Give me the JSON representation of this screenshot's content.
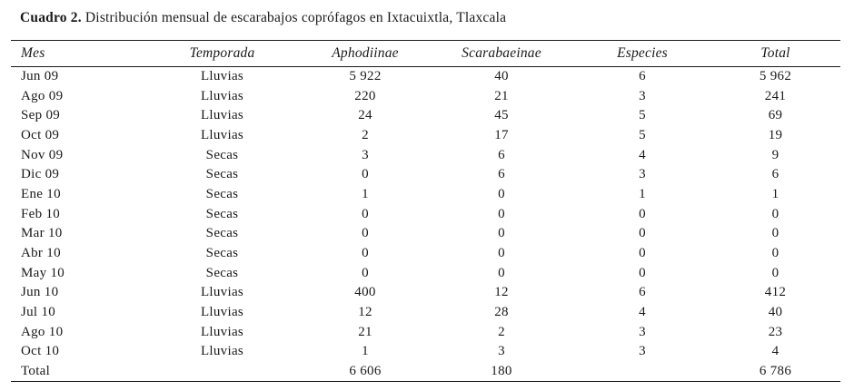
{
  "caption": {
    "label": "Cuadro 2.",
    "text": " Distribución mensual de escarabajos coprófagos en Ixtacuixtla, Tlaxcala"
  },
  "table": {
    "columns": [
      "Mes",
      "Temporada",
      "Aphodiinae",
      "Scarabaeinae",
      "Especies",
      "Total"
    ],
    "rows": [
      [
        "Jun 09",
        "Lluvias",
        "5 922",
        "40",
        "6",
        "5 962"
      ],
      [
        "Ago 09",
        "Lluvias",
        "220",
        "21",
        "3",
        "241"
      ],
      [
        "Sep 09",
        "Lluvias",
        "24",
        "45",
        "5",
        "69"
      ],
      [
        "Oct 09",
        "Lluvias",
        "2",
        "17",
        "5",
        "19"
      ],
      [
        "Nov 09",
        "Secas",
        "3",
        "6",
        "4",
        "9"
      ],
      [
        "Dic 09",
        "Secas",
        "0",
        "6",
        "3",
        "6"
      ],
      [
        "Ene 10",
        "Secas",
        "1",
        "0",
        "1",
        "1"
      ],
      [
        "Feb 10",
        "Secas",
        "0",
        "0",
        "0",
        "0"
      ],
      [
        "Mar 10",
        "Secas",
        "0",
        "0",
        "0",
        "0"
      ],
      [
        "Abr 10",
        "Secas",
        "0",
        "0",
        "0",
        "0"
      ],
      [
        "May 10",
        "Secas",
        "0",
        "0",
        "0",
        "0"
      ],
      [
        "Jun 10",
        "Lluvias",
        "400",
        "12",
        "6",
        "412"
      ],
      [
        "Jul 10",
        "Lluvias",
        "12",
        "28",
        "4",
        "40"
      ],
      [
        "Ago 10",
        "Lluvias",
        "21",
        "2",
        "3",
        "23"
      ],
      [
        "Oct 10",
        "Lluvias",
        "1",
        "3",
        "3",
        "4"
      ],
      [
        "Total",
        "",
        "6 606",
        "180",
        "",
        "6 786"
      ]
    ]
  },
  "colors": {
    "text": "#1a1a1a",
    "background": "#ffffff",
    "rule": "#1a1a1a"
  }
}
